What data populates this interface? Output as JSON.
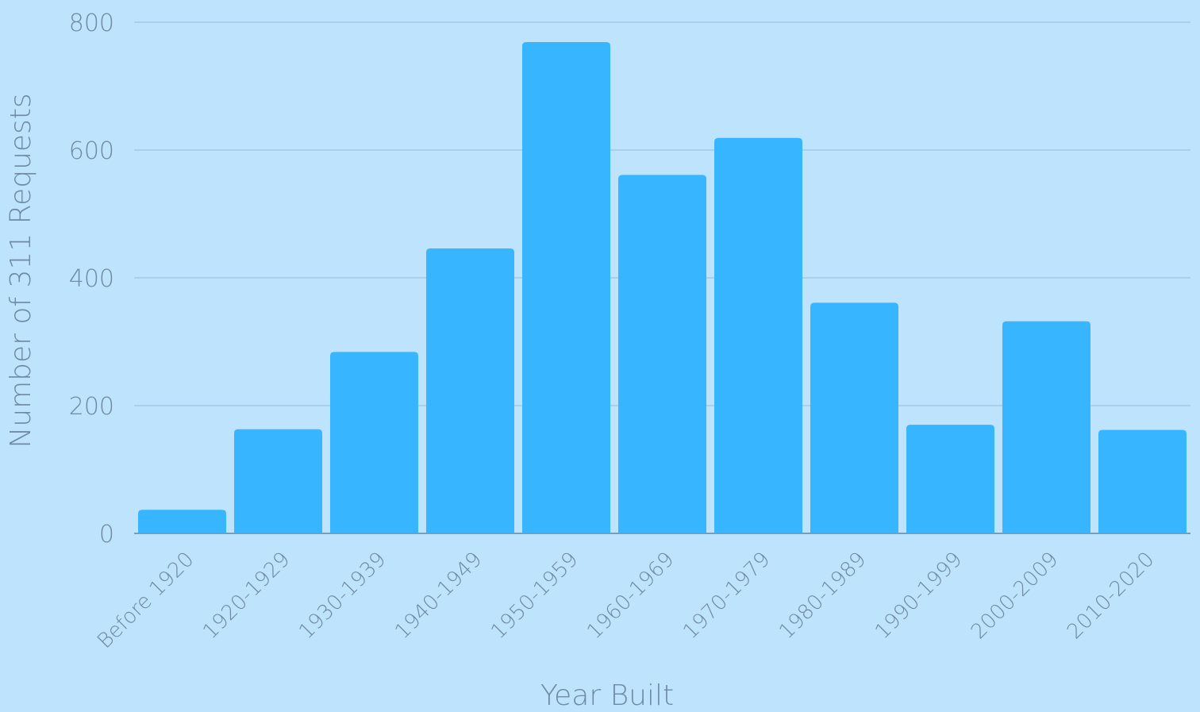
{
  "chart_data": {
    "type": "bar",
    "title": "",
    "xlabel": "Year Built",
    "ylabel": "Number of 311 Requests",
    "categories": [
      "Before 1920",
      "1920-1929",
      "1930-1939",
      "1940-1949",
      "1950-1959",
      "1960-1969",
      "1970-1979",
      "1980-1989",
      "1990-1999",
      "2000-2009",
      "2010-2020"
    ],
    "values": [
      37,
      163,
      284,
      446,
      769,
      561,
      619,
      361,
      170,
      332,
      162
    ],
    "ylim": [
      0,
      800
    ],
    "yticks": [
      0,
      200,
      400,
      600,
      800
    ],
    "grid": true,
    "colors": {
      "background": "#bee3fd",
      "bar": "#38b5ff",
      "grid": "#9dc3e0",
      "axis": "#7a9cb8",
      "text": "#6f8aa3"
    }
  }
}
